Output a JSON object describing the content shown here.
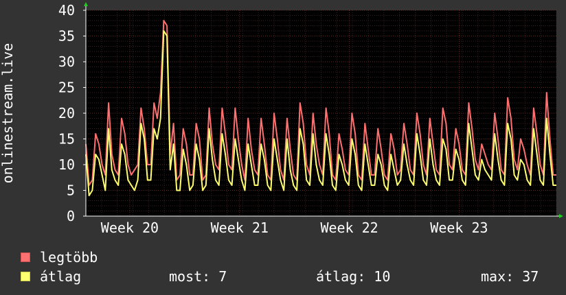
{
  "chart_data": {
    "type": "line",
    "title": "",
    "ylabel": "onlinestream.live",
    "xlabel": "",
    "ylim": [
      0,
      40
    ],
    "yticks": [
      0,
      5,
      10,
      15,
      20,
      25,
      30,
      35,
      40
    ],
    "xlim": [
      0,
      150
    ],
    "x_tick_labels": [
      {
        "label": "Week 20",
        "pos": 14
      },
      {
        "label": "Week 21",
        "pos": 49
      },
      {
        "label": "Week 22",
        "pos": 84
      },
      {
        "label": "Week 23",
        "pos": 119
      }
    ],
    "grid": true,
    "colors": {
      "background": "#333333",
      "plot": "#000000",
      "grid": "#5a2a2a",
      "axis": "#ffffff",
      "legtobb": "#ff7070",
      "atlag": "#ffff70"
    },
    "series": [
      {
        "name": "legtöbb",
        "color": "#ff7070",
        "values": [
          14,
          6,
          7,
          16,
          14,
          10,
          8,
          22,
          12,
          9,
          8,
          19,
          16,
          10,
          8,
          9,
          10,
          21,
          17,
          10,
          10,
          22,
          19,
          24,
          38,
          37,
          12,
          18,
          7,
          8,
          17,
          14,
          8,
          8,
          18,
          15,
          7,
          8,
          21,
          14,
          10,
          9,
          21,
          16,
          10,
          9,
          21,
          15,
          10,
          7,
          19,
          13,
          9,
          8,
          19,
          14,
          8,
          7,
          20,
          15,
          9,
          7,
          19,
          13,
          8,
          7,
          22,
          18,
          10,
          8,
          20,
          14,
          10,
          8,
          21,
          16,
          8,
          7,
          16,
          13,
          9,
          8,
          20,
          16,
          8,
          7,
          18,
          13,
          8,
          8,
          17,
          13,
          8,
          7,
          16,
          13,
          8,
          9,
          18,
          14,
          9,
          8,
          20,
          16,
          10,
          8,
          19,
          14,
          9,
          8,
          21,
          18,
          10,
          9,
          17,
          14,
          9,
          8,
          22,
          17,
          11,
          9,
          14,
          12,
          10,
          9,
          20,
          15,
          9,
          8,
          23,
          19,
          11,
          9,
          15,
          13,
          10,
          8,
          21,
          16,
          10,
          8,
          24,
          15,
          8,
          8
        ]
      },
      {
        "name": "átlag",
        "color": "#ffff70",
        "values": [
          12,
          4,
          5,
          12,
          11,
          8,
          5,
          17,
          9,
          7,
          6,
          14,
          12,
          7,
          6,
          5,
          7,
          18,
          15,
          7,
          7,
          17,
          15,
          19,
          36,
          35,
          9,
          14,
          5,
          5,
          13,
          10,
          5,
          6,
          14,
          11,
          5,
          6,
          17,
          11,
          7,
          6,
          16,
          12,
          7,
          6,
          15,
          11,
          7,
          5,
          14,
          10,
          6,
          6,
          14,
          11,
          6,
          5,
          15,
          11,
          7,
          5,
          15,
          9,
          6,
          5,
          17,
          14,
          7,
          6,
          16,
          10,
          7,
          6,
          16,
          12,
          6,
          5,
          12,
          10,
          7,
          6,
          15,
          12,
          6,
          5,
          14,
          10,
          6,
          6,
          12,
          10,
          6,
          5,
          12,
          9,
          6,
          7,
          14,
          10,
          7,
          6,
          16,
          12,
          7,
          6,
          15,
          10,
          7,
          6,
          15,
          13,
          7,
          7,
          13,
          11,
          7,
          6,
          18,
          13,
          8,
          7,
          11,
          9,
          8,
          7,
          16,
          11,
          7,
          6,
          18,
          15,
          8,
          7,
          11,
          10,
          7,
          6,
          17,
          12,
          7,
          6,
          19,
          12,
          6,
          6
        ]
      }
    ]
  },
  "legend": [
    {
      "label": "legtöbb",
      "color": "#ff7070"
    },
    {
      "label": "átlag",
      "color": "#ffff70"
    }
  ],
  "stats": {
    "most": "most: 7",
    "atlag": "átlag: 10",
    "max": "max: 37"
  }
}
